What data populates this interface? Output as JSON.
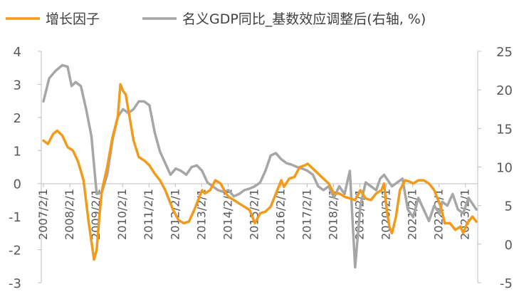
{
  "chart_data": {
    "type": "line",
    "title": "",
    "legend_position": "top",
    "grid": false,
    "x_axis": {
      "tick_labels": [
        "2007/2/1",
        "2008/2/1",
        "2009/2/1",
        "2010/2/1",
        "2011/2/1",
        "2012/2/1",
        "2013/2/1",
        "2014/2/1",
        "2015/2/1",
        "2016/2/1",
        "2017/2/1",
        "2018/2/1",
        "2019/2/1",
        "2020/2/1",
        "2021/2/1",
        "2022/2/1",
        "2023/2/1"
      ]
    },
    "y_left": {
      "min": -3,
      "max": 4,
      "step": 1,
      "ticks": [
        "4",
        "3",
        "2",
        "1",
        "0",
        "-1",
        "-2",
        "-3"
      ]
    },
    "y_right": {
      "min": -5,
      "max": 25,
      "step": 5,
      "ticks": [
        "25",
        "20",
        "15",
        "10",
        "5",
        "0",
        "-5"
      ]
    },
    "series": [
      {
        "name": "增长因子",
        "axis": "left",
        "color": "#F39A1A",
        "x": [
          2007.08,
          2007.25,
          2007.45,
          2007.6,
          2007.8,
          2008.0,
          2008.2,
          2008.4,
          2008.6,
          2008.8,
          2009.0,
          2009.1,
          2009.2,
          2009.3,
          2009.5,
          2009.7,
          2009.9,
          2010.0,
          2010.1,
          2010.2,
          2010.35,
          2010.5,
          2010.7,
          2010.9,
          2011.1,
          2011.3,
          2011.5,
          2011.7,
          2011.9,
          2012.0,
          2012.2,
          2012.4,
          2012.6,
          2012.8,
          2013.0,
          2013.1,
          2013.2,
          2013.4,
          2013.6,
          2013.8,
          2014.0,
          2014.1,
          2014.3,
          2014.5,
          2014.7,
          2014.9,
          2015.1,
          2015.3,
          2015.5,
          2015.7,
          2015.9,
          2016.1,
          2016.2,
          2016.4,
          2016.6,
          2016.8,
          2017.0,
          2017.1,
          2017.3,
          2017.5,
          2017.7,
          2017.9,
          2018.1,
          2018.3,
          2018.5,
          2018.7,
          2018.9,
          2019.1,
          2019.3,
          2019.5,
          2019.7,
          2019.9,
          2020.0,
          2020.1,
          2020.2,
          2020.3,
          2020.45,
          2020.6,
          2020.8,
          2021.0,
          2021.1,
          2021.3,
          2021.5,
          2021.7,
          2021.9,
          2022.0,
          2022.15,
          2022.3,
          2022.5,
          2022.7,
          2022.9,
          2023.0,
          2023.15,
          2023.35,
          2023.5
        ],
        "y": [
          1.3,
          1.2,
          1.5,
          1.6,
          1.45,
          1.1,
          1.0,
          0.65,
          0.1,
          -1.2,
          -2.3,
          -2.0,
          -1.0,
          -0.2,
          0.5,
          1.4,
          2.0,
          3.0,
          2.8,
          2.7,
          2.0,
          1.3,
          0.8,
          0.7,
          0.55,
          0.3,
          0.1,
          -0.2,
          -0.6,
          -0.8,
          -1.1,
          -1.2,
          -1.15,
          -0.8,
          -0.4,
          -0.2,
          -0.3,
          -0.2,
          0.1,
          0.0,
          -0.3,
          -0.4,
          -0.5,
          -0.6,
          -0.7,
          -0.8,
          -1.2,
          -0.9,
          -0.85,
          -0.7,
          -0.3,
          0.1,
          -0.1,
          0.15,
          0.2,
          0.5,
          0.55,
          0.6,
          0.45,
          0.3,
          0.15,
          0.0,
          -0.3,
          -0.3,
          -0.4,
          -0.45,
          -0.5,
          -0.2,
          -0.45,
          -0.5,
          -0.3,
          -0.2,
          0.0,
          -0.8,
          -1.3,
          -1.5,
          -1.0,
          -0.2,
          0.1,
          0.05,
          0.0,
          0.1,
          0.1,
          0.0,
          -0.2,
          -0.4,
          -0.7,
          -1.2,
          -1.2,
          -1.4,
          -1.3,
          -1.5,
          -1.2,
          -1.0,
          -1.15
        ]
      },
      {
        "name": "名义GDP同比_基数效应调整后(右轴, %)",
        "axis": "right",
        "color": "#A6A6A6",
        "x": [
          2007.08,
          2007.3,
          2007.55,
          2007.8,
          2008.0,
          2008.15,
          2008.3,
          2008.5,
          2008.7,
          2008.9,
          2009.1,
          2009.3,
          2009.5,
          2009.7,
          2009.9,
          2010.1,
          2010.3,
          2010.5,
          2010.7,
          2010.9,
          2011.1,
          2011.3,
          2011.5,
          2011.7,
          2011.9,
          2012.1,
          2012.3,
          2012.5,
          2012.7,
          2012.9,
          2013.1,
          2013.3,
          2013.5,
          2013.7,
          2013.9,
          2014.1,
          2014.3,
          2014.5,
          2014.7,
          2014.9,
          2015.1,
          2015.3,
          2015.5,
          2015.7,
          2015.9,
          2016.1,
          2016.3,
          2016.5,
          2016.7,
          2016.9,
          2017.1,
          2017.3,
          2017.5,
          2017.7,
          2017.9,
          2018.1,
          2018.3,
          2018.5,
          2018.7,
          2018.9,
          2019.1,
          2019.3,
          2019.5,
          2019.7,
          2019.85,
          2020.0,
          2020.1,
          2020.3,
          2020.5,
          2020.7,
          2020.9,
          2021.1,
          2021.3,
          2021.5,
          2021.7,
          2021.9,
          2022.1,
          2022.2,
          2022.4,
          2022.6,
          2022.8,
          2023.0,
          2023.2,
          2023.4,
          2023.5
        ],
        "y": [
          18.5,
          21.5,
          22.5,
          23.2,
          23.0,
          20.5,
          21.0,
          20.5,
          17.5,
          14.0,
          6.5,
          6.8,
          9.0,
          13.5,
          16.5,
          17.5,
          17.0,
          17.5,
          18.5,
          18.5,
          18.0,
          14.5,
          12.0,
          10.5,
          9.0,
          9.8,
          9.5,
          9.0,
          10.0,
          10.2,
          9.5,
          8.0,
          7.5,
          7.0,
          6.8,
          7.0,
          6.2,
          6.5,
          7.0,
          7.2,
          7.5,
          8.0,
          9.5,
          11.5,
          11.8,
          11.0,
          10.5,
          10.3,
          10.0,
          9.8,
          9.5,
          9.0,
          7.5,
          7.0,
          7.5,
          6.0,
          7.5,
          6.5,
          9.5,
          -3.0,
          5.0,
          8.0,
          7.5,
          7.0,
          8.5,
          9.0,
          8.5,
          7.5,
          8.0,
          8.5,
          4.5,
          3.5,
          6.0,
          4.5,
          3.0,
          5.0,
          4.0,
          5.5,
          5.0,
          6.5,
          4.5,
          4.0,
          6.0,
          5.0,
          4.5
        ]
      }
    ]
  }
}
